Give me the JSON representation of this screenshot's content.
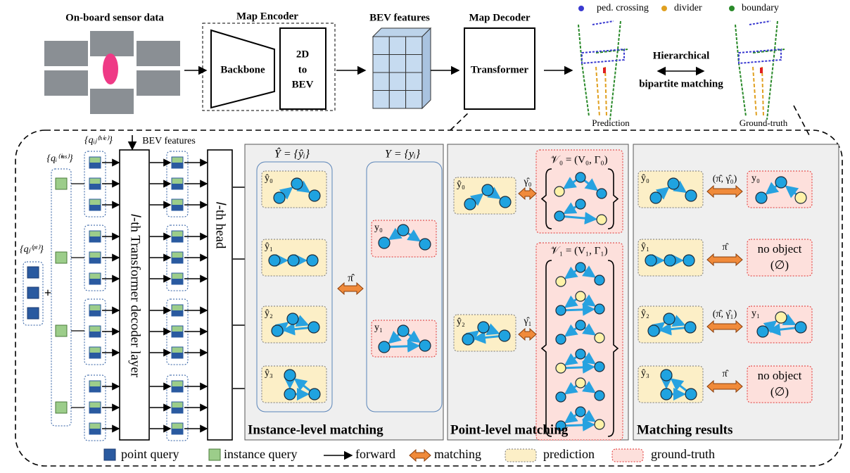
{
  "top": {
    "sensor_title": "On-board sensor data",
    "encoder_title": "Map Encoder",
    "backbone": "Backbone",
    "bev_transform": [
      "2D",
      "to",
      "BEV"
    ],
    "bev_title": "BEV features",
    "decoder_title": "Map Decoder",
    "transformer": "Transformer",
    "map_legend": [
      "ped. crossing",
      "divider",
      "boundary"
    ],
    "matching": [
      "Hierarchical",
      "bipartite matching"
    ],
    "captions": [
      "Prediction",
      "Ground-truth"
    ]
  },
  "pipeline": {
    "point_query": "{qⱼ⁽ᵖᵗ⁾}",
    "instance_query": "{qᵢ⁽ⁱⁿˢ⁾}",
    "hierarchical_query": "{qᵢⱼ⁽ʰⁱᵉ⁾}",
    "plus": "+",
    "bev_input": "BEV features",
    "decoder_layer": "𝑙-th Transformer decoder layer",
    "head": "𝑙-th head"
  },
  "instance": {
    "pred_set": "Ŷ = {ŷᵢ}",
    "gt_set": "Y = {yᵢ}",
    "preds": [
      "ŷ₀",
      "ŷ₁",
      "ŷ₂",
      "ŷ₃"
    ],
    "gts": [
      "y₀",
      "y₁"
    ],
    "assign": "π̂",
    "title": "Instance-level matching"
  },
  "point": {
    "preds": [
      "ŷ₀",
      "ŷ₂"
    ],
    "assign": [
      "γ̂₀",
      "γ̂₁"
    ],
    "sets": [
      "𝒱₀ = (V₀, Γ₀)",
      "𝒱₁ = (V₁, Γ₁)"
    ],
    "title": "Point-level matching"
  },
  "results": {
    "preds": [
      "ŷ₀",
      "ŷ₁",
      "ŷ₂",
      "ŷ₃"
    ],
    "assign": [
      "(π̂, γ̂₀)",
      "π̂",
      "(π̂, γ̂₁)",
      "π̂"
    ],
    "targets": [
      [
        "y₀"
      ],
      [
        "no object",
        "(∅)"
      ],
      [
        "y₁"
      ],
      [
        "no object",
        "(∅)"
      ]
    ],
    "title": "Matching results"
  },
  "legend": [
    "point query",
    "instance query",
    "forward",
    "matching",
    "prediction",
    "ground-truth"
  ]
}
